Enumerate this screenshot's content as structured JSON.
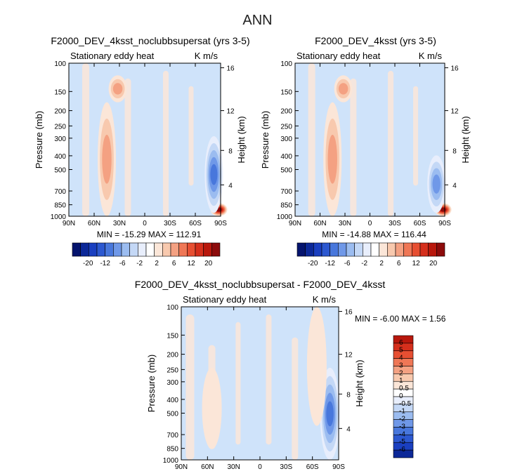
{
  "page_title": "ANN",
  "colors": {
    "background_field": "#cfe3fa",
    "positive_shades": [
      "#fbe6d8",
      "#f8c9ae",
      "#f4a182",
      "#ef7756",
      "#e74f32",
      "#d52f1c",
      "#b8170c",
      "#8c0b0b"
    ],
    "negative_shades": [
      "#e8eefc",
      "#c4d8f6",
      "#9bbcf0",
      "#6f98e8",
      "#4877dc",
      "#2c58d0",
      "#1a3fc0",
      "#0c2898",
      "#05146e"
    ]
  },
  "chart_data": [
    {
      "type": "contour",
      "title": "F2000_DEV_4ksst_noclubbsupersat (yrs 3-5)",
      "left_label": "Stationary eddy heat",
      "right_label": "K m/s",
      "stats_text": "MIN = -15.29   MAX = 112.91",
      "min": -15.29,
      "max": 112.91,
      "ylabel": "Pressure (mb)",
      "ylabel_right": "Height (km)",
      "x_ticks": [
        "90N",
        "60N",
        "30N",
        "0",
        "30S",
        "60S",
        "90S"
      ],
      "y_ticks": [
        "100",
        "150",
        "200",
        "250",
        "300",
        "400",
        "500",
        "700",
        "850",
        "1000"
      ],
      "height_ticks": [
        "16",
        "12",
        "8",
        "4"
      ],
      "colorbar_labels": [
        "-20",
        "-12",
        "-6",
        "-2",
        "2",
        "6",
        "12",
        "20"
      ],
      "features": [
        {
          "name": "northern midlatitude warm transport column",
          "lat": 45,
          "p_top": 180,
          "p_bottom": 1000,
          "level": 3
        },
        {
          "name": "upper tropospheric band",
          "lat": 32,
          "p_top": 120,
          "p_bottom": 180,
          "level": 3
        },
        {
          "name": "antarctic surface maximum",
          "lat": -88,
          "p_top": 820,
          "p_bottom": 1000,
          "level": 8
        },
        {
          "name": "antarctic negative column",
          "lat": -82,
          "p_top": 300,
          "p_bottom": 950,
          "level": -5
        }
      ]
    },
    {
      "type": "contour",
      "title": "F2000_DEV_4ksst (yrs 3-5)",
      "left_label": "Stationary eddy heat",
      "right_label": "K m/s",
      "stats_text": "MIN = -14.88   MAX = 116.44",
      "min": -14.88,
      "max": 116.44,
      "ylabel": "Pressure (mb)",
      "ylabel_right": "Height (km)",
      "x_ticks": [
        "90N",
        "60N",
        "30N",
        "0",
        "30S",
        "60S",
        "90S"
      ],
      "y_ticks": [
        "100",
        "150",
        "200",
        "250",
        "300",
        "400",
        "500",
        "700",
        "850",
        "1000"
      ],
      "height_ticks": [
        "16",
        "12",
        "8",
        "4"
      ],
      "colorbar_labels": [
        "-20",
        "-12",
        "-6",
        "-2",
        "2",
        "6",
        "12",
        "20"
      ],
      "features": [
        {
          "name": "northern midlatitude warm transport column",
          "lat": 45,
          "p_top": 180,
          "p_bottom": 1000,
          "level": 3
        },
        {
          "name": "upper tropospheric band",
          "lat": 32,
          "p_top": 120,
          "p_bottom": 180,
          "level": 3
        },
        {
          "name": "antarctic surface maximum",
          "lat": -88,
          "p_top": 820,
          "p_bottom": 1000,
          "level": 8
        },
        {
          "name": "antarctic negative column",
          "lat": -80,
          "p_top": 400,
          "p_bottom": 950,
          "level": -4
        }
      ]
    },
    {
      "type": "contour",
      "title": "F2000_DEV_4ksst_noclubbsupersat - F2000_DEV_4ksst",
      "left_label": "Stationary eddy heat",
      "right_label": "K m/s",
      "stats_text": "MIN =  -6.00   MAX =   1.56",
      "min": -6.0,
      "max": 1.56,
      "ylabel": "Pressure (mb)",
      "ylabel_right": "Height (km)",
      "x_ticks": [
        "90N",
        "60N",
        "30N",
        "0",
        "30S",
        "60S",
        "90S"
      ],
      "y_ticks": [
        "100",
        "150",
        "200",
        "250",
        "300",
        "400",
        "500",
        "700",
        "850",
        "1000"
      ],
      "height_ticks": [
        "16",
        "12",
        "8",
        "4"
      ],
      "colorbar_labels": [
        "6",
        "5",
        "4",
        "3",
        "2",
        "1",
        "0.5",
        "0",
        "-0.5",
        "-1",
        "-2",
        "-3",
        "-4",
        "-5",
        "-6"
      ],
      "features": [
        {
          "name": "antarctic negative difference column",
          "lat": -80,
          "p_top": 250,
          "p_bottom": 1000,
          "level": -5
        },
        {
          "name": "southern positive column",
          "lat": -65,
          "p_top": 100,
          "p_bottom": 600,
          "level": 1
        },
        {
          "name": "northern positive column",
          "lat": 55,
          "p_top": 250,
          "p_bottom": 850,
          "level": 1
        }
      ]
    }
  ]
}
